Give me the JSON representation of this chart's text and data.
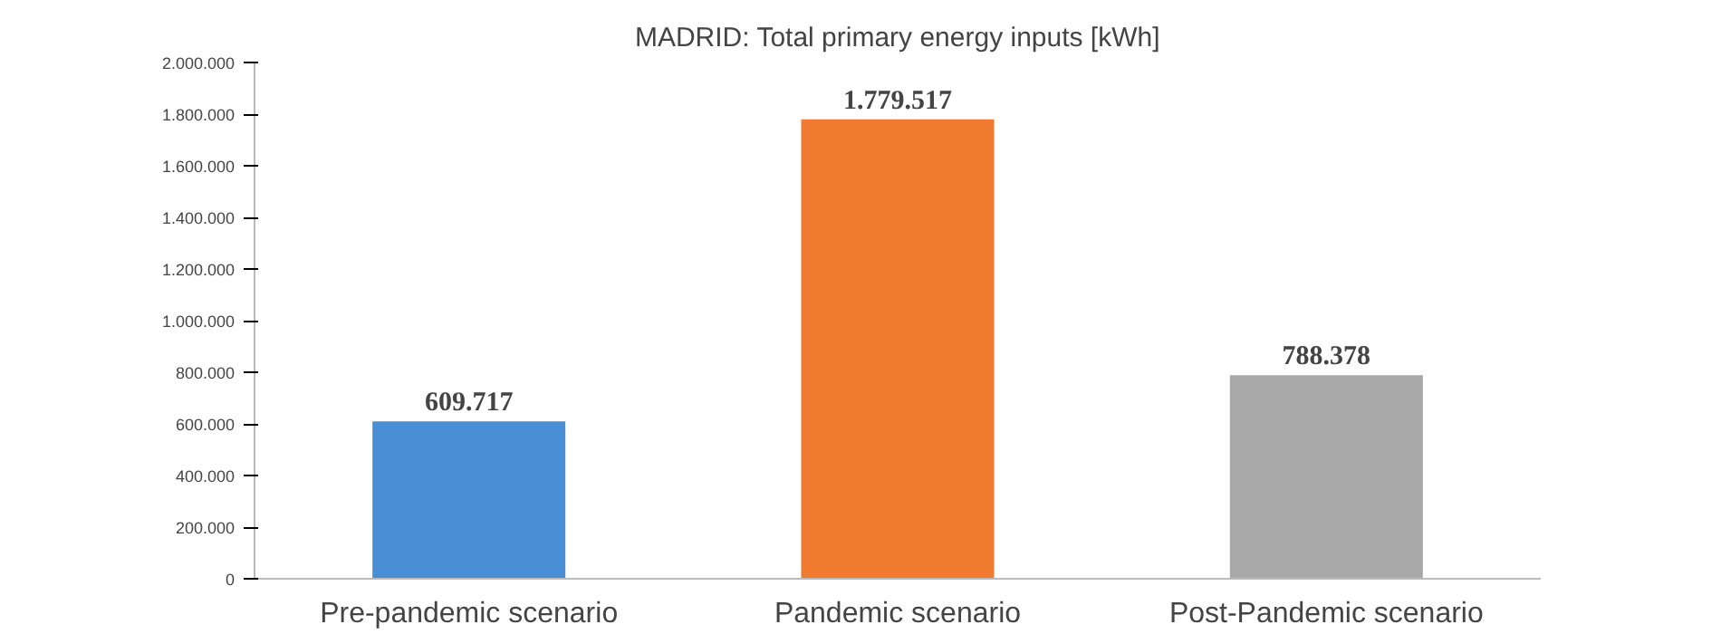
{
  "chart_data": {
    "type": "bar",
    "title": "MADRID: Total primary energy inputs [kWh]",
    "categories": [
      "Pre-pandemic scenario",
      "Pandemic scenario",
      "Post-Pandemic scenario"
    ],
    "values": [
      609717,
      1779517,
      788378
    ],
    "colors": [
      "#4a8fd6",
      "#f07a30",
      "#a8a8a8"
    ],
    "value_labels": [
      "609.717",
      "1.779.517",
      "788.378"
    ],
    "ylim": [
      0,
      2000000
    ],
    "yticks": [
      {
        "value": 0,
        "label": "0"
      },
      {
        "value": 200000,
        "label": "200.000"
      },
      {
        "value": 400000,
        "label": "400.000"
      },
      {
        "value": 600000,
        "label": "600.000"
      },
      {
        "value": 800000,
        "label": "800.000"
      },
      {
        "value": 1000000,
        "label": "1.000.000"
      },
      {
        "value": 1200000,
        "label": "1.200.000"
      },
      {
        "value": 1400000,
        "label": "1.400.000"
      },
      {
        "value": 1600000,
        "label": "1.600.000"
      },
      {
        "value": 1800000,
        "label": "1.800.000"
      },
      {
        "value": 2000000,
        "label": "2.000.000"
      }
    ],
    "grid": false
  }
}
